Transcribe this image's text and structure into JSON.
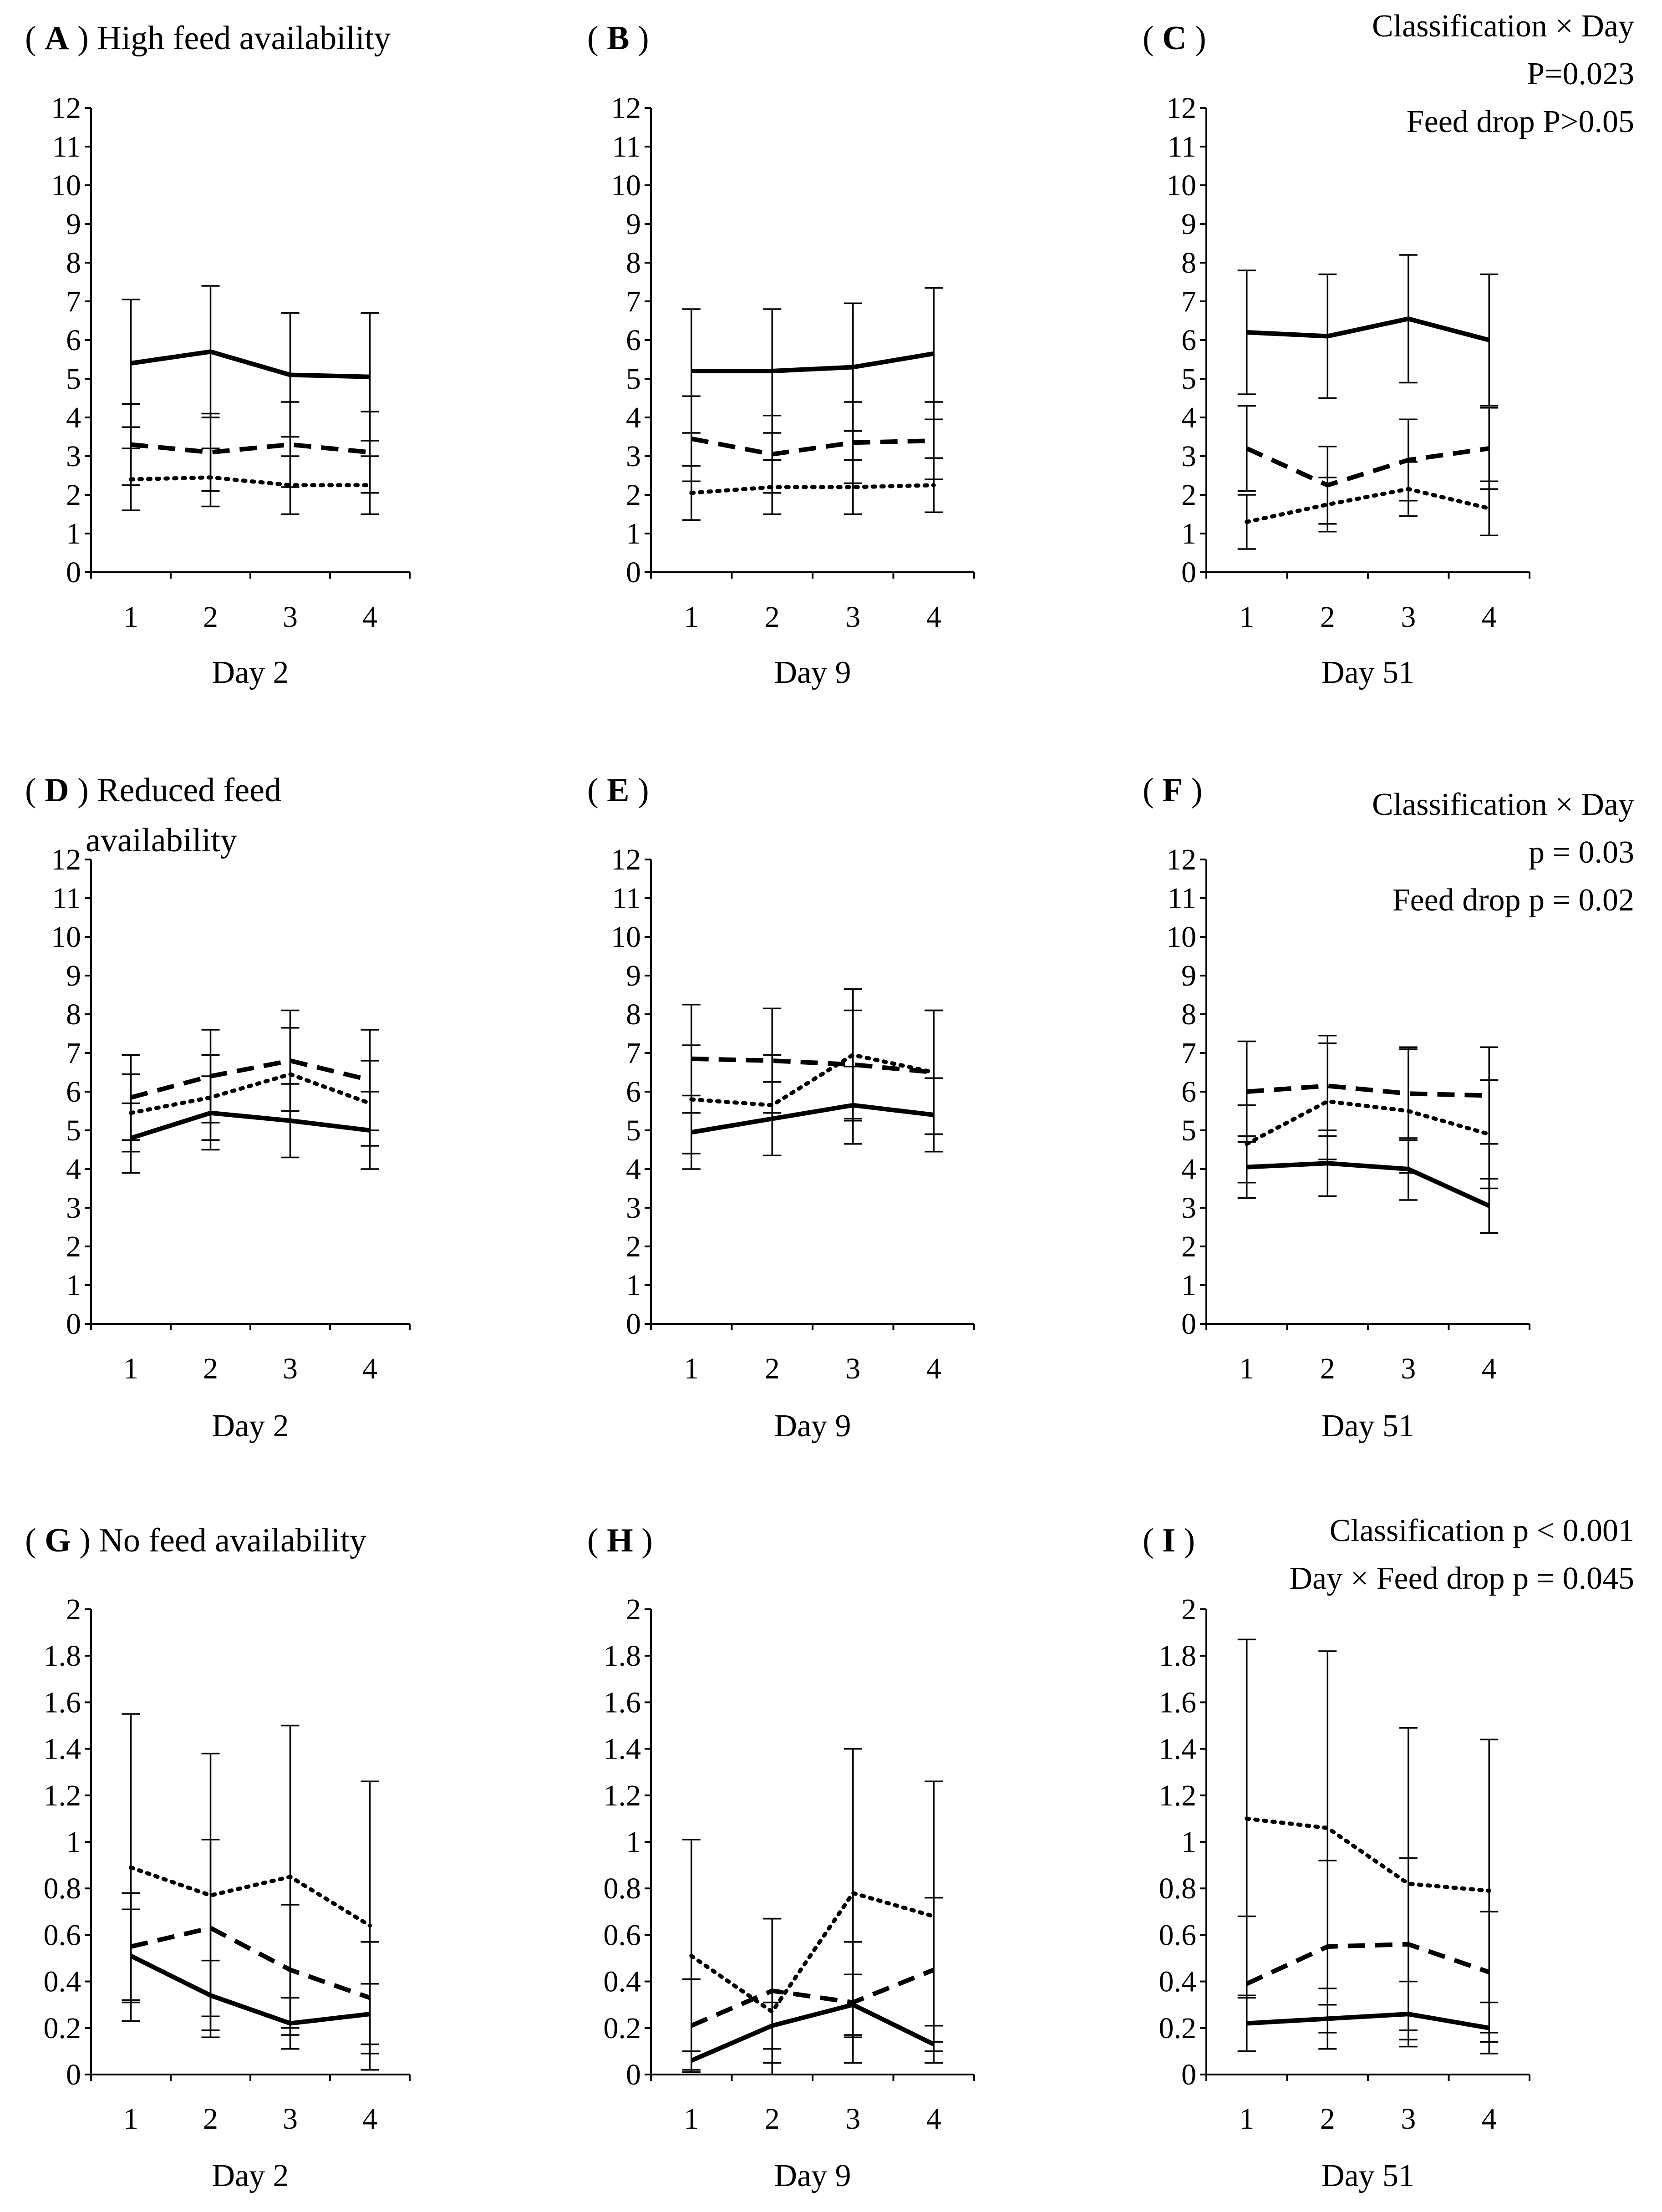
{
  "chart_data": [
    {
      "panel": "A",
      "title": "High feed availability",
      "type": "line",
      "categories": [
        "1",
        "2",
        "3",
        "4"
      ],
      "xlabel": "Day 2",
      "ylim": [
        0,
        12
      ],
      "yticks": [
        "0",
        "1",
        "2",
        "3",
        "4",
        "5",
        "6",
        "7",
        "8",
        "9",
        "10",
        "11",
        "12"
      ],
      "notes": [],
      "series": [
        {
          "name": "solid",
          "style": "solid",
          "values": [
            5.4,
            5.7,
            5.1,
            5.05
          ],
          "err": [
            1.65,
            1.7,
            1.6,
            1.65
          ]
        },
        {
          "name": "dashed",
          "style": "dashed",
          "values": [
            3.3,
            3.1,
            3.3,
            3.1
          ],
          "err": [
            1.05,
            1.0,
            1.1,
            1.05
          ]
        },
        {
          "name": "dotted",
          "style": "dotted",
          "values": [
            2.4,
            2.45,
            2.25,
            2.25
          ],
          "err": [
            0.8,
            0.75,
            0.75,
            0.75
          ]
        }
      ]
    },
    {
      "panel": "B",
      "title": "",
      "type": "line",
      "categories": [
        "1",
        "2",
        "3",
        "4"
      ],
      "xlabel": "Day 9",
      "ylim": [
        0,
        12
      ],
      "yticks": [
        "0",
        "1",
        "2",
        "3",
        "4",
        "5",
        "6",
        "7",
        "8",
        "9",
        "10",
        "11",
        "12"
      ],
      "notes": [],
      "series": [
        {
          "name": "solid",
          "style": "solid",
          "values": [
            5.2,
            5.2,
            5.3,
            5.65
          ],
          "err": [
            1.6,
            1.6,
            1.65,
            1.7
          ]
        },
        {
          "name": "dashed",
          "style": "dashed",
          "values": [
            3.45,
            3.05,
            3.35,
            3.4
          ],
          "err": [
            1.1,
            1.0,
            1.05,
            1.0
          ]
        },
        {
          "name": "dotted",
          "style": "dotted",
          "values": [
            2.05,
            2.2,
            2.2,
            2.25
          ],
          "err": [
            0.7,
            0.7,
            0.7,
            0.7
          ]
        }
      ]
    },
    {
      "panel": "C",
      "title": "",
      "type": "line",
      "categories": [
        "1",
        "2",
        "3",
        "4"
      ],
      "xlabel": "Day 51",
      "ylim": [
        0,
        12
      ],
      "yticks": [
        "0",
        "1",
        "2",
        "3",
        "4",
        "5",
        "6",
        "7",
        "8",
        "9",
        "10",
        "11",
        "12"
      ],
      "notes": [
        "Classification × Day",
        "P=0.023",
        "Feed drop P>0.05"
      ],
      "series": [
        {
          "name": "solid",
          "style": "solid",
          "values": [
            6.2,
            6.1,
            6.55,
            6.0
          ],
          "err": [
            1.6,
            1.6,
            1.65,
            1.7
          ]
        },
        {
          "name": "dashed",
          "style": "dashed",
          "values": [
            3.2,
            2.25,
            2.9,
            3.2
          ],
          "err": [
            1.1,
            1.0,
            1.05,
            1.05
          ]
        },
        {
          "name": "dotted",
          "style": "dotted",
          "values": [
            1.3,
            1.75,
            2.15,
            1.65
          ],
          "err": [
            0.7,
            0.7,
            0.7,
            0.7
          ]
        }
      ]
    },
    {
      "panel": "D",
      "title": "Reduced feed availability",
      "type": "line",
      "categories": [
        "1",
        "2",
        "3",
        "4"
      ],
      "xlabel": "Day 2",
      "ylim": [
        0,
        12
      ],
      "yticks": [
        "0",
        "1",
        "2",
        "3",
        "4",
        "5",
        "6",
        "7",
        "8",
        "9",
        "10",
        "11",
        "12"
      ],
      "notes": [],
      "series": [
        {
          "name": "solid",
          "style": "solid",
          "values": [
            4.8,
            5.45,
            5.25,
            5.0
          ],
          "err": [
            0.9,
            0.95,
            0.95,
            1.0
          ]
        },
        {
          "name": "dashed",
          "style": "dashed",
          "values": [
            5.85,
            6.4,
            6.8,
            6.3
          ],
          "err": [
            1.1,
            1.2,
            1.3,
            1.3
          ]
        },
        {
          "name": "dotted",
          "style": "dotted",
          "values": [
            5.45,
            5.85,
            6.45,
            5.7
          ],
          "err": [
            1.0,
            1.1,
            1.2,
            1.1
          ]
        }
      ]
    },
    {
      "panel": "E",
      "title": "",
      "type": "line",
      "categories": [
        "1",
        "2",
        "3",
        "4"
      ],
      "xlabel": "Day 9",
      "ylim": [
        0,
        12
      ],
      "yticks": [
        "0",
        "1",
        "2",
        "3",
        "4",
        "5",
        "6",
        "7",
        "8",
        "9",
        "10",
        "11",
        "12"
      ],
      "notes": [],
      "series": [
        {
          "name": "solid",
          "style": "solid",
          "values": [
            4.95,
            5.3,
            5.65,
            5.4
          ],
          "err": [
            0.95,
            0.95,
            1.0,
            0.95
          ]
        },
        {
          "name": "dashed",
          "style": "dashed",
          "values": [
            6.85,
            6.8,
            6.7,
            6.5
          ],
          "err": [
            1.4,
            1.35,
            1.4,
            1.6
          ]
        },
        {
          "name": "dotted",
          "style": "dotted",
          "values": [
            5.8,
            5.65,
            6.95,
            6.5
          ],
          "err": [
            1.4,
            1.3,
            1.7,
            1.6
          ]
        }
      ]
    },
    {
      "panel": "F",
      "title": "",
      "type": "line",
      "categories": [
        "1",
        "2",
        "3",
        "4"
      ],
      "xlabel": "Day 51",
      "ylim": [
        0,
        12
      ],
      "yticks": [
        "0",
        "1",
        "2",
        "3",
        "4",
        "5",
        "6",
        "7",
        "8",
        "9",
        "10",
        "11",
        "12"
      ],
      "notes": [
        "Classification × Day",
        "p = 0.03",
        "Feed drop p = 0.02"
      ],
      "series": [
        {
          "name": "solid",
          "style": "solid",
          "values": [
            4.05,
            4.15,
            4.0,
            3.05
          ],
          "err": [
            0.8,
            0.85,
            0.8,
            0.7
          ]
        },
        {
          "name": "dashed",
          "style": "dashed",
          "values": [
            6.0,
            6.15,
            5.95,
            5.9
          ],
          "err": [
            1.3,
            1.3,
            1.2,
            1.25
          ]
        },
        {
          "name": "dotted",
          "style": "dotted",
          "values": [
            4.65,
            5.75,
            5.5,
            4.9
          ],
          "err": [
            1.0,
            1.5,
            1.6,
            1.4
          ]
        }
      ]
    },
    {
      "panel": "G",
      "title": "No feed availability",
      "type": "line",
      "categories": [
        "1",
        "2",
        "3",
        "4"
      ],
      "xlabel": "Day 2",
      "ylim": [
        0,
        2
      ],
      "yticks": [
        "0",
        "0.2",
        "0.4",
        "0.6",
        "0.8",
        "1",
        "1.2",
        "1.4",
        "1.6",
        "1.8",
        "2"
      ],
      "notes": [],
      "series": [
        {
          "name": "solid",
          "style": "solid",
          "values": [
            0.51,
            0.34,
            0.22,
            0.26
          ],
          "err": [
            0.2,
            0.15,
            0.11,
            0.13
          ]
        },
        {
          "name": "dashed",
          "style": "dashed",
          "values": [
            0.55,
            0.63,
            0.45,
            0.33
          ],
          "err": [
            0.23,
            0.38,
            0.28,
            0.24
          ]
        },
        {
          "name": "dotted",
          "style": "dotted",
          "values": [
            0.89,
            0.77,
            0.85,
            0.64
          ],
          "err": [
            0.66,
            0.61,
            0.65,
            0.62
          ]
        }
      ]
    },
    {
      "panel": "H",
      "title": "",
      "type": "line",
      "categories": [
        "1",
        "2",
        "3",
        "4"
      ],
      "xlabel": "Day 9",
      "ylim": [
        0,
        2
      ],
      "yticks": [
        "0",
        "0.2",
        "0.4",
        "0.6",
        "0.8",
        "1",
        "1.2",
        "1.4",
        "1.6",
        "1.8",
        "2"
      ],
      "notes": [],
      "series": [
        {
          "name": "solid",
          "style": "solid",
          "values": [
            0.06,
            0.21,
            0.3,
            0.13
          ],
          "err": [
            0.04,
            0.1,
            0.13,
            0.08
          ]
        },
        {
          "name": "dashed",
          "style": "dashed",
          "values": [
            0.21,
            0.36,
            0.31,
            0.45
          ],
          "err": [
            0.2,
            0.31,
            0.26,
            0.31
          ]
        },
        {
          "name": "dotted",
          "style": "dotted",
          "values": [
            0.51,
            0.27,
            0.78,
            0.68
          ],
          "err": [
            0.5,
            0.4,
            0.62,
            0.58
          ]
        }
      ]
    },
    {
      "panel": "I",
      "title": "",
      "type": "line",
      "categories": [
        "1",
        "2",
        "3",
        "4"
      ],
      "xlabel": "Day 51",
      "ylim": [
        0,
        2
      ],
      "yticks": [
        "0",
        "0.2",
        "0.4",
        "0.6",
        "0.8",
        "1",
        "1.2",
        "1.4",
        "1.6",
        "1.8",
        "2"
      ],
      "notes": [
        "Classification p < 0.001",
        "Day × Feed drop p = 0.045"
      ],
      "series": [
        {
          "name": "solid",
          "style": "solid",
          "values": [
            0.22,
            0.24,
            0.26,
            0.2
          ],
          "err": [
            0.12,
            0.13,
            0.14,
            0.11
          ]
        },
        {
          "name": "dashed",
          "style": "dashed",
          "values": [
            0.39,
            0.55,
            0.56,
            0.44
          ],
          "err": [
            0.29,
            0.37,
            0.37,
            0.26
          ]
        },
        {
          "name": "dotted",
          "style": "dotted",
          "values": [
            1.1,
            1.06,
            0.82,
            0.79
          ],
          "err": [
            0.77,
            0.76,
            0.67,
            0.65
          ]
        }
      ]
    }
  ]
}
